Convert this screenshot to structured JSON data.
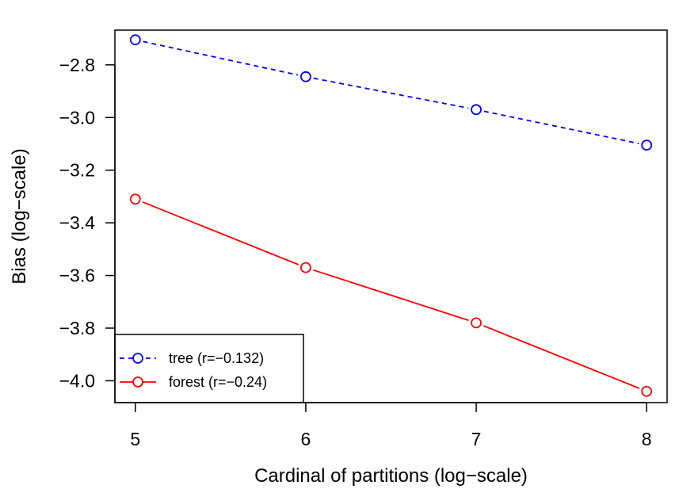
{
  "chart_data": {
    "type": "line",
    "title": "",
    "xlabel": "Cardinal of partitions (log−scale)",
    "ylabel": "Bias (log−scale)",
    "x": [
      5,
      6,
      7,
      8
    ],
    "xticks": [
      5,
      6,
      7,
      8
    ],
    "xtick_labels": [
      "5",
      "6",
      "7",
      "8"
    ],
    "yticks": [
      -4.0,
      -3.8,
      -3.6,
      -3.4,
      -3.2,
      -3.0,
      -2.8
    ],
    "ytick_labels": [
      "−4.0",
      "−3.8",
      "−3.6",
      "−3.4",
      "−3.2",
      "−3.0",
      "−2.8"
    ],
    "xlim": [
      4.88,
      8.12
    ],
    "ylim": [
      -4.083,
      -2.668
    ],
    "grid": false,
    "legend_position": "bottom-left",
    "series": [
      {
        "name": "tree (r=−0.132)",
        "values": [
          -2.705,
          -2.845,
          -2.97,
          -3.105
        ],
        "color": "#0000ff",
        "line_style": "dashed",
        "marker": "open-circle"
      },
      {
        "name": "forest (r=−0.24)",
        "values": [
          -3.31,
          -3.57,
          -3.78,
          -4.04
        ],
        "color": "#ff0000",
        "line_style": "solid",
        "marker": "open-circle"
      }
    ]
  }
}
